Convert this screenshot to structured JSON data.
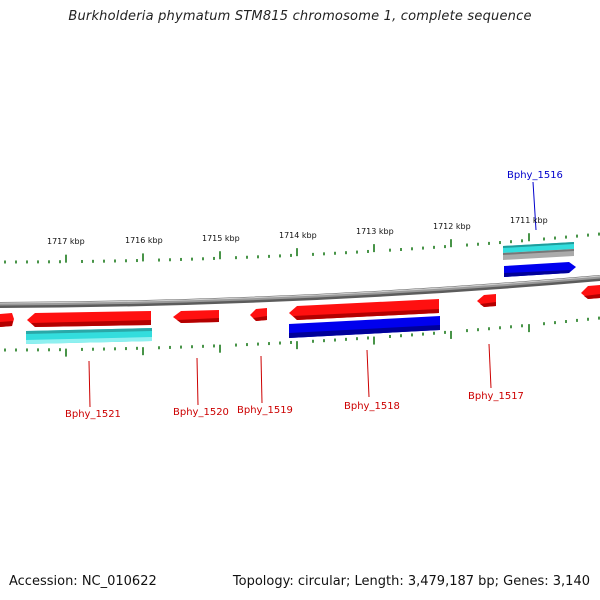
{
  "title": "Burkholderia phymatum STM815 chromosome 1, complete sequence",
  "accession_text": "Accession: NC_010622",
  "summary_text": "Topology: circular; Length: 3,479,187 bp; Genes: 3,140",
  "colors": {
    "backbone": "#8a8a8a",
    "tick": "#1a7a1a",
    "gene_red": "#ee0000",
    "gene_blue": "#0000dd",
    "gene_cyan": "#22cccc",
    "label_red": "#cc0000",
    "label_blue": "#0000cc"
  },
  "scale_labels": [
    "1711 kbp",
    "1712 kbp",
    "1713 kbp",
    "1714 kbp",
    "1715 kbp",
    "1716 kbp",
    "1717 kbp"
  ],
  "gene_labels": [
    {
      "text": "Bphy_1516",
      "color": "blue"
    },
    {
      "text": "Bphy_1517",
      "color": "red"
    },
    {
      "text": "Bphy_1518",
      "color": "red"
    },
    {
      "text": "Bphy_1519",
      "color": "red"
    },
    {
      "text": "Bphy_1520",
      "color": "red"
    },
    {
      "text": "Bphy_1521",
      "color": "red"
    }
  ]
}
